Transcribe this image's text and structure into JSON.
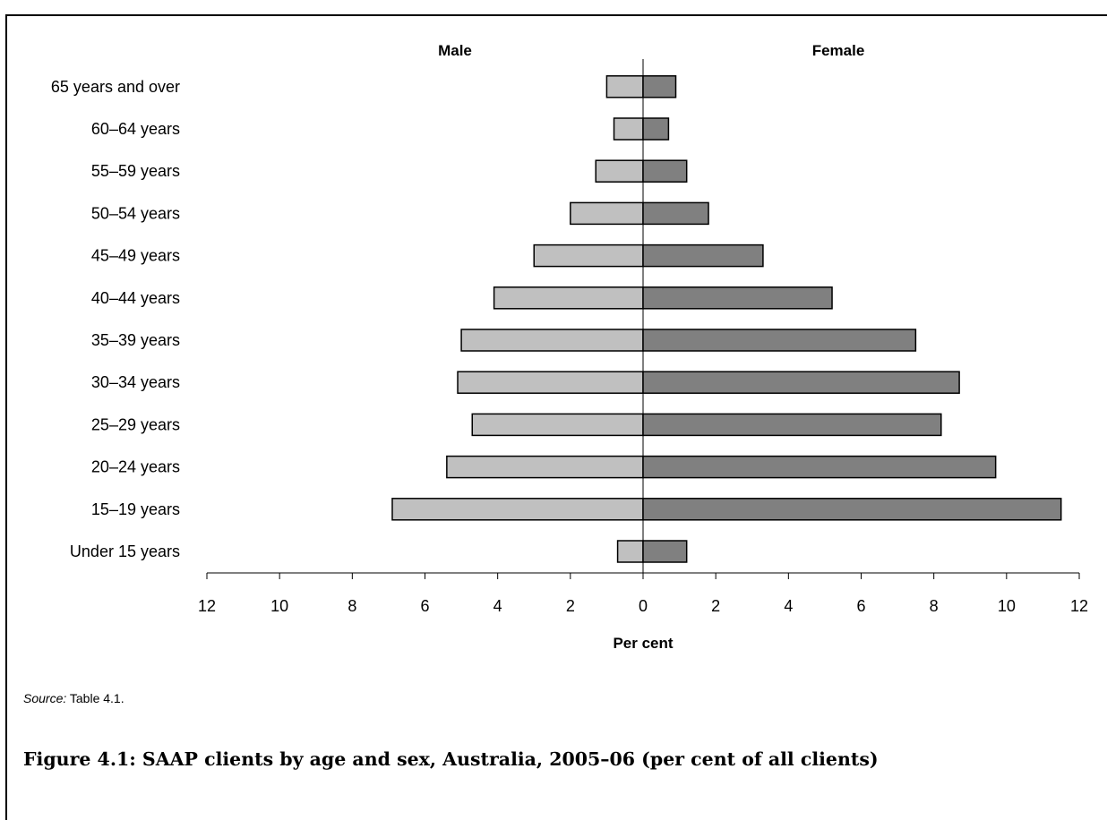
{
  "chart_data": {
    "type": "bar",
    "orientation": "horizontal",
    "layout": "population-pyramid",
    "categories": [
      "Under 15 years",
      "15–19 years",
      "20–24 years",
      "25–29 years",
      "30–34 years",
      "35–39 years",
      "40–44 years",
      "45–49 years",
      "50–54 years",
      "55–59 years",
      "60–64 years",
      "65 years and over"
    ],
    "series": [
      {
        "name": "Male",
        "side": "left",
        "color": "#c0c0c0",
        "values": [
          0.7,
          6.9,
          5.4,
          4.7,
          5.1,
          5.0,
          4.1,
          3.0,
          2.0,
          1.3,
          0.8,
          1.0
        ]
      },
      {
        "name": "Female",
        "side": "right",
        "color": "#808080",
        "values": [
          1.2,
          11.5,
          9.7,
          8.2,
          8.7,
          7.5,
          5.2,
          3.3,
          1.8,
          1.2,
          0.7,
          0.9
        ]
      }
    ],
    "xlabel": "Per cent",
    "xlim": [
      -12,
      12
    ],
    "xticks": [
      -12,
      -10,
      -8,
      -6,
      -4,
      -2,
      0,
      2,
      4,
      6,
      8,
      10,
      12
    ],
    "xtick_labels": [
      "12",
      "10",
      "8",
      "6",
      "4",
      "2",
      "0",
      "2",
      "4",
      "6",
      "8",
      "10",
      "12"
    ],
    "grid": false,
    "bar_edge_color": "#000000"
  },
  "source": {
    "label": "Source:",
    "text": " Table 4.1."
  },
  "caption": "Figure 4.1: SAAP clients by age and sex, Australia, 2005–06 (per cent of all clients)"
}
